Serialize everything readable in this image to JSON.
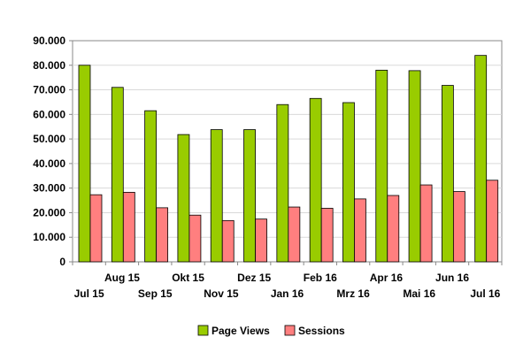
{
  "chart_data": {
    "type": "bar",
    "categories": [
      "Jul 15",
      "Aug 15",
      "Sep 15",
      "Okt 15",
      "Nov 15",
      "Dez 15",
      "Jan 16",
      "Feb 16",
      "Mrz 16",
      "Apr 16",
      "Mai 16",
      "Jun 16",
      "Jul 16"
    ],
    "series": [
      {
        "name": "Page Views",
        "color": "#99cc00",
        "values": [
          80000,
          71000,
          61500,
          51800,
          53800,
          53800,
          64000,
          66500,
          64800,
          78000,
          77800,
          71800,
          84000
        ]
      },
      {
        "name": "Sessions",
        "color": "#ff7f7f",
        "values": [
          27300,
          28300,
          22000,
          19000,
          16800,
          17400,
          22300,
          21800,
          25600,
          27000,
          31300,
          28600,
          33200
        ]
      }
    ],
    "ylim": [
      0,
      90000
    ],
    "yticks": [
      "0",
      "10.000",
      "20.000",
      "30.000",
      "40.000",
      "50.000",
      "60.000",
      "70.000",
      "80.000",
      "90.000"
    ],
    "grid": true,
    "legend": "bottom"
  }
}
